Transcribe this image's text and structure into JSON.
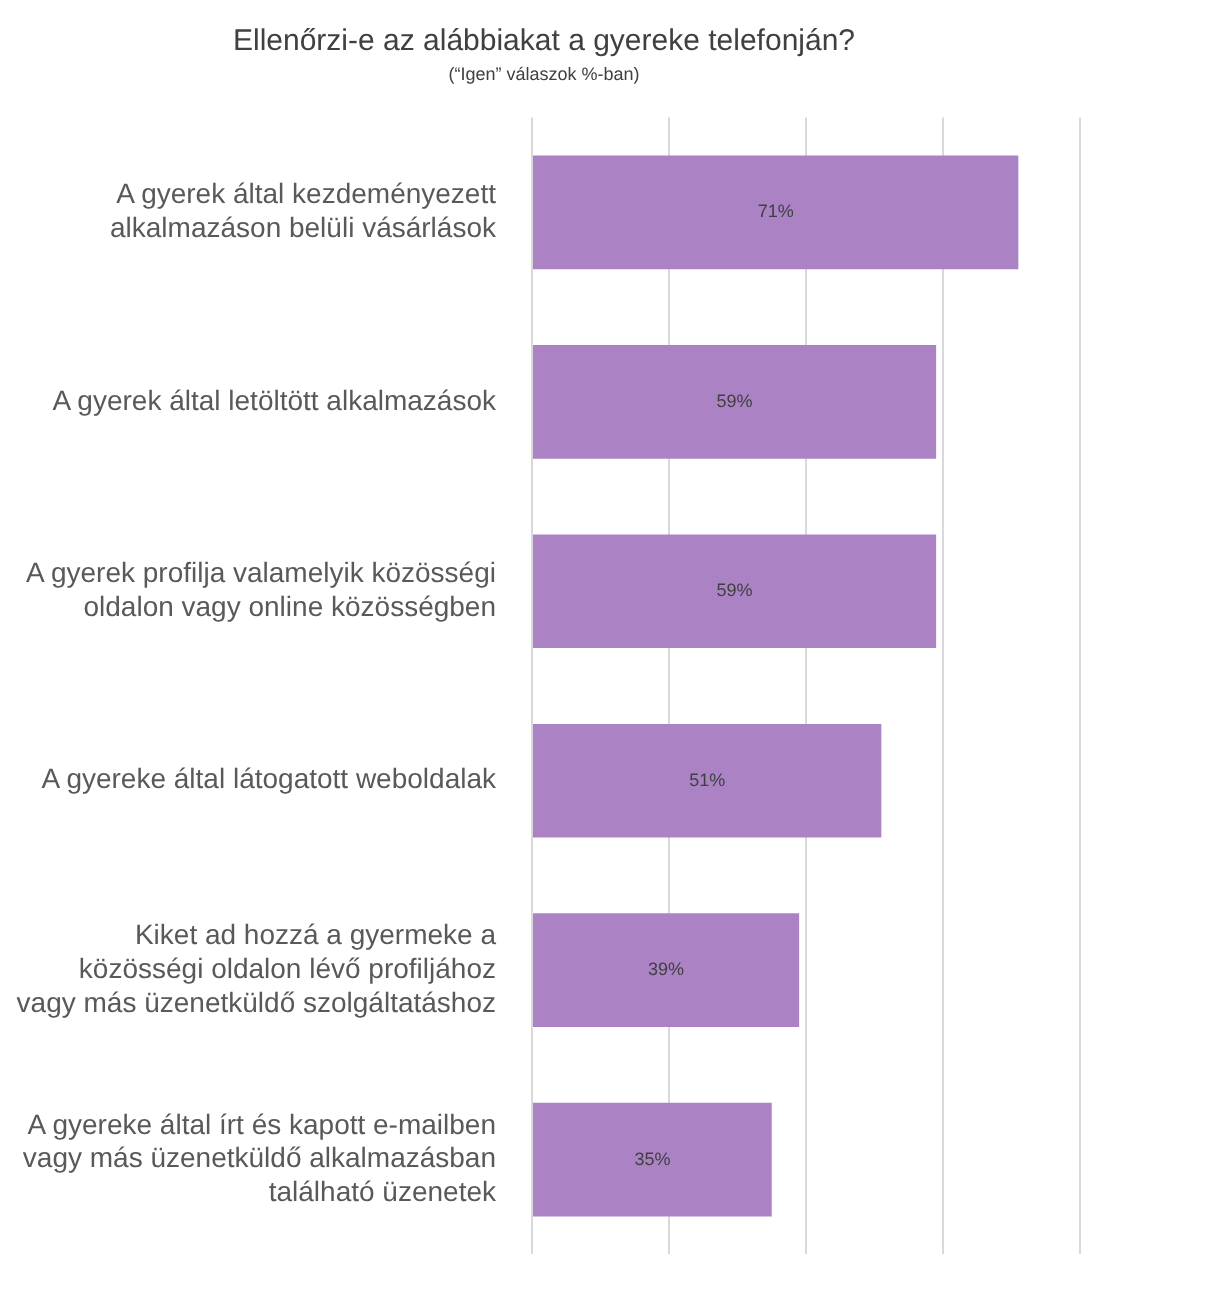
{
  "chart_data": {
    "type": "bar",
    "orientation": "horizontal",
    "title": "Ellenőrzi-e az alábbiakat a gyereke telefonján?",
    "subtitle": "(“Igen” válaszok %-ban)",
    "categories": [
      "A gyerek által kezdeményezett alkalmazáson belüli vásárlások",
      "A gyerek által letöltött alkalmazások",
      "A gyerek profilja valamelyik közösségi oldalon vagy online közösségben",
      "A gyereke által látogatott weboldalak",
      "Kiket ad hozzá a gyermeke a közösségi oldalon lévő profiljához vagy más üzenetküldő szolgáltatáshoz",
      "A gyereke által írt és kapott e-mailben vagy más üzenetküldő alkalmazásban található üzenetek"
    ],
    "values": [
      71,
      59,
      59,
      51,
      39,
      35
    ],
    "value_labels": [
      "71%",
      "59%",
      "59%",
      "51%",
      "39%",
      "35%"
    ],
    "color": "#ab83c5",
    "xlim": [
      0,
      80
    ],
    "xticks": [
      {
        "value": 0,
        "label": null
      },
      {
        "value": 20,
        "label": null
      },
      {
        "value": 40,
        "label": null
      },
      {
        "value": 60,
        "label": null
      },
      {
        "value": 80,
        "label": null
      }
    ],
    "grid": "x",
    "tick_labels": "y",
    "legend": false
  }
}
